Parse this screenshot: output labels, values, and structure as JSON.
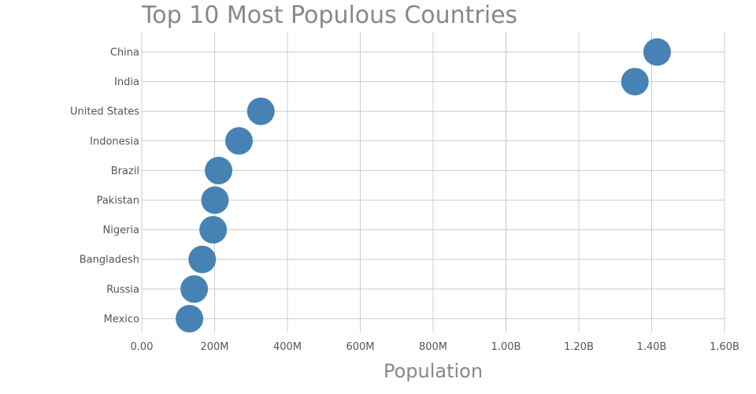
{
  "chart_data": {
    "type": "scatter",
    "title": "Top 10 Most Populous Countries",
    "xlabel": "Population",
    "ylabel": "",
    "xlim": [
      0,
      1600000000
    ],
    "x_ticks": [
      0,
      200000000,
      400000000,
      600000000,
      800000000,
      1000000000,
      1200000000,
      1400000000,
      1600000000
    ],
    "x_tick_labels": [
      "0.00",
      "200M",
      "400M",
      "600M",
      "800M",
      "1.00B",
      "1.20B",
      "1.40B",
      "1.60B"
    ],
    "categories": [
      "China",
      "India",
      "United States",
      "Indonesia",
      "Brazil",
      "Pakistan",
      "Nigeria",
      "Bangladesh",
      "Russia",
      "Mexico"
    ],
    "values": [
      1415000000,
      1354000000,
      327000000,
      267000000,
      211000000,
      201000000,
      196000000,
      166000000,
      144000000,
      131000000
    ],
    "marker_color": "#4682b4",
    "grid": true,
    "legend": false
  }
}
